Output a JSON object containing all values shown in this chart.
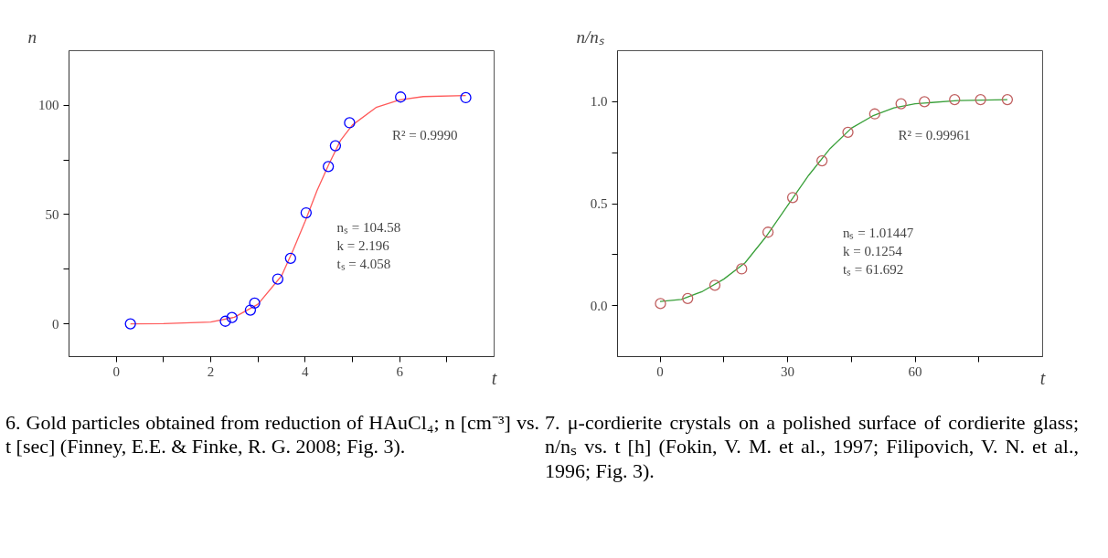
{
  "chart_data": [
    {
      "type": "scatter",
      "xlabel": "t",
      "ylabel": "n",
      "xlim": [
        -1,
        8
      ],
      "ylim": [
        -15,
        125
      ],
      "xticks": [
        0,
        {
          "value": 1,
          "label": null
        },
        2,
        {
          "value": 3,
          "label": null
        },
        4,
        {
          "value": 5,
          "label": null
        },
        6,
        {
          "value": 7,
          "label": null
        }
      ],
      "yticks": [
        0,
        {
          "value": 25,
          "label": null
        },
        50,
        {
          "value": 75,
          "label": null
        },
        100
      ],
      "grid": false,
      "series": [
        {
          "type": "line",
          "color": "#ff5a5a",
          "line_style": "solid",
          "x": [
            0.3,
            1,
            2,
            2.5,
            3,
            3.5,
            3.75,
            4,
            4.25,
            4.5,
            4.75,
            5,
            5.5,
            6,
            6.5,
            7.4
          ],
          "values": [
            0,
            0.1,
            0.8,
            3,
            9,
            22,
            34,
            47,
            61,
            73,
            84,
            91,
            99,
            102.5,
            104,
            104.5
          ]
        },
        {
          "color": "#0000ff",
          "marker": "circle",
          "x": [
            0.3,
            2.31,
            2.45,
            2.84,
            2.93,
            3.42,
            3.69,
            4.02,
            4.49,
            4.64,
            4.94,
            6.02,
            7.4
          ],
          "values": [
            0,
            1.2,
            2.9,
            6.3,
            9.5,
            20.5,
            30,
            50.8,
            72,
            81.5,
            92,
            103.8,
            103.5
          ]
        }
      ],
      "annotations": [
        "R² = 0.9990",
        "nₛ = 104.58",
        "k =  2.196",
        "tₛ = 4.058",
        "6. Gold particles obtained from reduction of HAuCl₄; n [cm⁻³] vs. t [sec] (Finney, E.E. & Finke, R. G. 2008; Fig. 3)."
      ]
    },
    {
      "type": "scatter",
      "xlabel": "t",
      "ylabel": "n/nₛ",
      "xlim": [
        -10,
        90
      ],
      "ylim": [
        -0.25,
        1.25
      ],
      "xticks": [
        0,
        {
          "value": 15,
          "label": null
        },
        30,
        {
          "value": 45,
          "label": null
        },
        60,
        {
          "value": 75,
          "label": null
        }
      ],
      "yticks": [
        {
          "value": 0,
          "label": "0.0"
        },
        {
          "value": 0.25,
          "label": null
        },
        {
          "value": 0.5,
          "label": "0.5"
        },
        {
          "value": 0.75,
          "label": null
        },
        {
          "value": 1,
          "label": "1.0"
        }
      ],
      "grid": false,
      "series": [
        {
          "type": "line",
          "color": "#3aa03a",
          "line_style": "solid",
          "x": [
            0,
            5,
            10,
            15,
            20,
            25,
            30,
            35,
            40,
            45,
            50,
            55,
            60,
            70,
            81.7
          ],
          "values": [
            0.02,
            0.03,
            0.07,
            0.13,
            0.21,
            0.34,
            0.49,
            0.64,
            0.77,
            0.87,
            0.93,
            0.97,
            0.99,
            1.005,
            1.01
          ]
        },
        {
          "color": "#c06060",
          "marker": "circle",
          "x": [
            0.1,
            6.5,
            12.9,
            19.2,
            25.4,
            31.2,
            38.1,
            44.2,
            50.5,
            56.7,
            62.2,
            69.3,
            75.4,
            81.7
          ],
          "values": [
            0.01,
            0.035,
            0.1,
            0.18,
            0.36,
            0.53,
            0.71,
            0.85,
            0.94,
            0.99,
            1.0,
            1.01,
            1.01,
            1.01
          ]
        }
      ],
      "annotations": [
        "R² = 0.99961",
        "nₛ = 1.01447",
        "k = 0.1254",
        "tₛ = 61.692",
        "7. μ-cordierite crystals on a polished surface of cordierite glass; n/nₛ vs. t [h] (Fokin, V. M. et al., 1997; Filipovich, V. N. et al., 1996; Fig. 3)."
      ]
    }
  ]
}
